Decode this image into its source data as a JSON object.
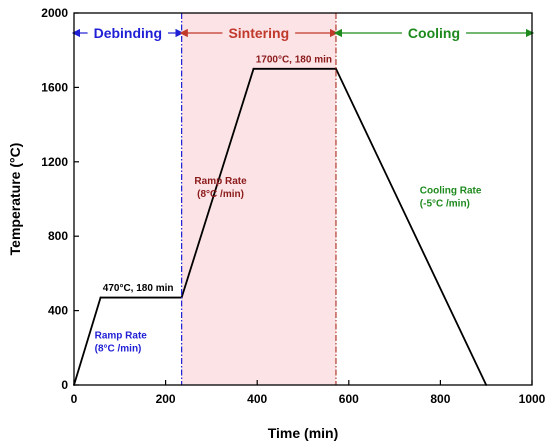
{
  "chart_data": {
    "type": "line",
    "xlabel": "Time (min)",
    "ylabel": "Temperature (°C)",
    "xlim": [
      0,
      1000
    ],
    "ylim": [
      0,
      2000
    ],
    "xticks": [
      0,
      200,
      400,
      600,
      800,
      1000
    ],
    "yticks": [
      0,
      400,
      800,
      1200,
      1600,
      2000
    ],
    "grid": false,
    "series": [
      {
        "x": [
          0,
          58,
          235,
          392,
          572,
          900
        ],
        "y": [
          0,
          470,
          470,
          1700,
          1700,
          0
        ],
        "color": "#000000"
      }
    ],
    "phases": [
      {
        "label": "Debinding",
        "x_start": 0,
        "x_end": 235,
        "color": "#1f1fd6",
        "shade": ""
      },
      {
        "label": "Sintering",
        "x_start": 235,
        "x_end": 572,
        "color": "#c0392b",
        "shade": "#fbe3e6"
      },
      {
        "label": "Cooling",
        "x_start": 572,
        "x_end": 1000,
        "color": "#1e8a1e",
        "shade": ""
      }
    ],
    "phase_boundaries": [
      {
        "x": 235,
        "color": "#1f1fd6"
      },
      {
        "x": 572,
        "color": "#b03a2e"
      }
    ],
    "annotations": [
      {
        "lines": [
          "470°C, 180 min"
        ],
        "x": 140,
        "y": 505,
        "color": "#000000",
        "anchor": "middle"
      },
      {
        "lines": [
          "1700°C, 180 min"
        ],
        "x": 480,
        "y": 1735,
        "color": "#8b1a1a",
        "anchor": "middle"
      },
      {
        "lines": [
          "Ramp Rate",
          "(8°C /min)"
        ],
        "x": 45,
        "y": 250,
        "color": "#1f1fd6",
        "anchor": "start"
      },
      {
        "lines": [
          "Ramp Rate",
          "(8°C /min)"
        ],
        "x": 320,
        "y": 1080,
        "color": "#8b1a1a",
        "anchor": "middle"
      },
      {
        "lines": [
          "Cooling Rate",
          "(-5°C /min)"
        ],
        "x": 755,
        "y": 1030,
        "color": "#1e8a1e",
        "anchor": "start"
      }
    ]
  }
}
